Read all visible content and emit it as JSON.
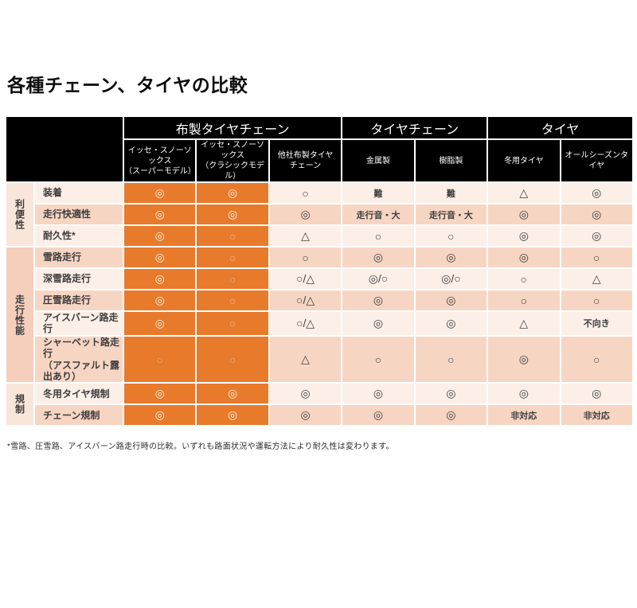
{
  "chart_data": {
    "type": "table",
    "title": "各種チェーン、タイヤの比較",
    "footnote": "*雪路、圧雪路、アイスバーン路走行時の比較。いずれも路面状況や運転方法により耐久性は変わります。",
    "legend_symbols": {
      "double_circle": "◎",
      "circle": "○",
      "triangle": "△"
    },
    "column_groups": [
      {
        "label": "布製タイヤチェーン",
        "span": 3
      },
      {
        "label": "タイヤチェーン",
        "span": 2
      },
      {
        "label": "タイヤ",
        "span": 2
      }
    ],
    "columns": [
      {
        "label": "イッセ・スノーソックス\n（スーパーモデル）",
        "highlight": true
      },
      {
        "label": "イッセ・スノーソックス\n（クラシックモデル）",
        "highlight": true
      },
      {
        "label": "他社布製タイヤ\nチェーン",
        "highlight": false
      },
      {
        "label": "金属製",
        "highlight": false
      },
      {
        "label": "樹脂製",
        "highlight": false
      },
      {
        "label": "冬用タイヤ",
        "highlight": false
      },
      {
        "label": "オールシーズンタイヤ",
        "highlight": false
      }
    ],
    "row_groups": [
      {
        "label": "利便性",
        "rows": [
          {
            "label": "装着",
            "values": [
              "◎",
              "◎",
              "○",
              "難",
              "難",
              "△",
              "◎"
            ]
          },
          {
            "label": "走行快適性",
            "values": [
              "◎",
              "◎",
              "◎",
              "走行音・大",
              "走行音・大",
              "◎",
              "◎"
            ]
          },
          {
            "label": "耐久性*",
            "values": [
              "◎",
              "○",
              "△",
              "○",
              "○",
              "◎",
              "◎"
            ]
          }
        ]
      },
      {
        "label": "走行性能",
        "rows": [
          {
            "label": "雪路走行",
            "values": [
              "◎",
              "○",
              "○",
              "◎",
              "◎",
              "◎",
              "○"
            ]
          },
          {
            "label": "深雪路走行",
            "values": [
              "◎",
              "○",
              "○/△",
              "◎/○",
              "◎/○",
              "○",
              "△"
            ]
          },
          {
            "label": "圧雪路走行",
            "values": [
              "◎",
              "○",
              "○/△",
              "◎",
              "◎",
              "○",
              "○"
            ]
          },
          {
            "label": "アイスバーン路走行",
            "values": [
              "◎",
              "○",
              "○/△",
              "◎",
              "◎",
              "△",
              "不向き"
            ]
          },
          {
            "label": "シャーベット路走行\n（アスファルト露出あり）",
            "values": [
              "○",
              "○",
              "△",
              "○",
              "○",
              "◎",
              "○"
            ]
          }
        ]
      },
      {
        "label": "規制",
        "rows": [
          {
            "label": "冬用タイヤ規制",
            "values": [
              "◎",
              "◎",
              "◎",
              "◎",
              "◎",
              "◎",
              "◎"
            ]
          },
          {
            "label": "チェーン規制",
            "values": [
              "◎",
              "◎",
              "◎",
              "◎",
              "◎",
              "非対応",
              "非対応"
            ]
          }
        ]
      }
    ],
    "colors": {
      "highlight_orange": "#E87A2C",
      "row_light": "#FCEFE8",
      "row_dark": "#F7D5C3",
      "group_light": "#FAE5DA",
      "group_dark": "#F5CEBC",
      "header_bg": "#000000",
      "header_text": "#FFFFFF",
      "symbol_dark": "#3F3F3F",
      "symbol_on_orange_strong": "#FDF4E8",
      "symbol_on_orange_faint": "#F5B77E"
    }
  }
}
